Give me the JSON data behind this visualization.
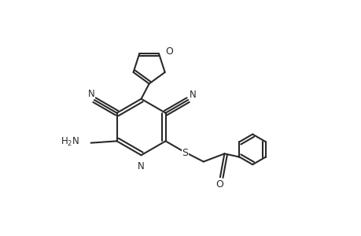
{
  "background_color": "#ffffff",
  "line_color": "#2a2a2a",
  "line_width": 1.5,
  "fig_width": 4.6,
  "fig_height": 3.0,
  "dpi": 100,
  "xlim": [
    0,
    10
  ],
  "ylim": [
    0,
    6.5
  ]
}
